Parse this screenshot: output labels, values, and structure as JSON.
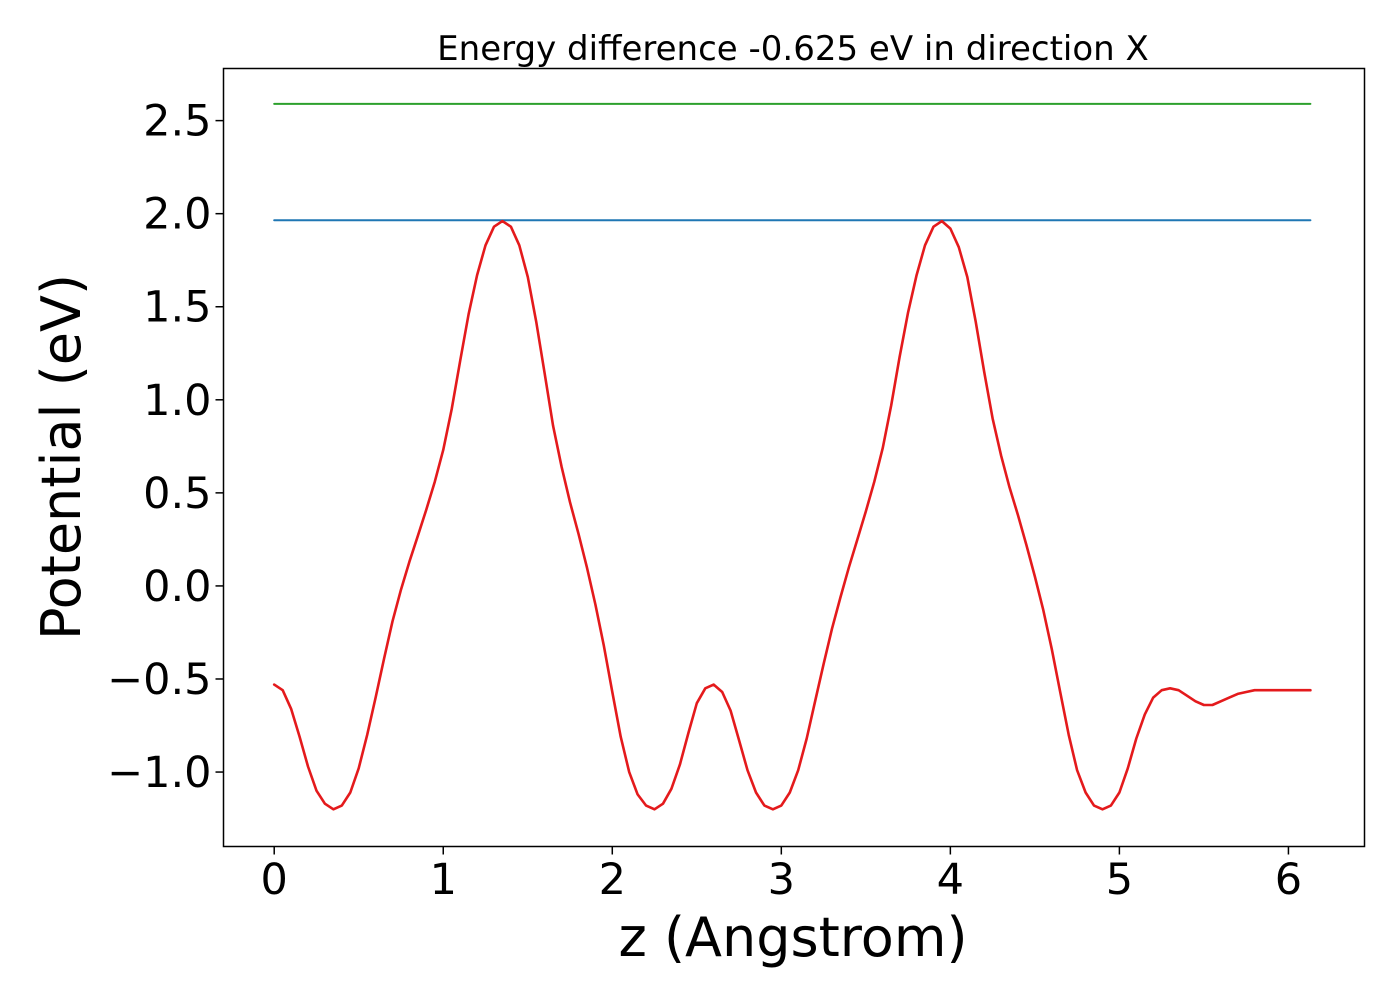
{
  "chart_data": {
    "type": "line",
    "title": "Energy difference -0.625 eV in direction X",
    "xlabel": "z (Angstrom)",
    "ylabel": "Potential (eV)",
    "xlim": [
      -0.3,
      6.45
    ],
    "ylim": [
      -1.4,
      2.78
    ],
    "x_ticks": [
      0,
      1,
      2,
      3,
      4,
      5,
      6
    ],
    "x_tick_labels": [
      "0",
      "1",
      "2",
      "3",
      "4",
      "5",
      "6"
    ],
    "y_ticks": [
      -1.0,
      -0.5,
      0.0,
      0.5,
      1.0,
      1.5,
      2.0,
      2.5
    ],
    "y_tick_labels": [
      "−1.0",
      "−0.5",
      "0.0",
      "0.5",
      "1.0",
      "1.5",
      "2.0",
      "2.5"
    ],
    "grid": false,
    "legend": "none",
    "series": [
      {
        "color": "#2ca02c",
        "x": [
          0.0,
          6.13
        ],
        "y": [
          2.59,
          2.59
        ]
      },
      {
        "color": "#1f77b4",
        "x": [
          0.0,
          6.13
        ],
        "y": [
          1.965,
          1.965
        ]
      },
      {
        "color": "#e41a1c",
        "x": [
          0.0,
          0.05,
          0.1,
          0.15,
          0.2,
          0.25,
          0.3,
          0.35,
          0.4,
          0.45,
          0.5,
          0.55,
          0.6,
          0.65,
          0.7,
          0.75,
          0.8,
          0.85,
          0.9,
          0.95,
          1.0,
          1.05,
          1.1,
          1.15,
          1.2,
          1.25,
          1.3,
          1.35,
          1.4,
          1.45,
          1.5,
          1.55,
          1.6,
          1.65,
          1.7,
          1.75,
          1.8,
          1.85,
          1.9,
          1.95,
          2.0,
          2.05,
          2.1,
          2.15,
          2.2,
          2.25,
          2.3,
          2.35,
          2.4,
          2.45,
          2.5,
          2.55,
          2.6,
          2.65,
          2.7,
          2.75,
          2.8,
          2.85,
          2.9,
          2.95,
          3.0,
          3.05,
          3.1,
          3.15,
          3.2,
          3.25,
          3.3,
          3.35,
          3.4,
          3.45,
          3.5,
          3.55,
          3.6,
          3.65,
          3.7,
          3.75,
          3.8,
          3.85,
          3.9,
          3.95,
          4.0,
          4.05,
          4.1,
          4.15,
          4.2,
          4.25,
          4.3,
          4.35,
          4.4,
          4.45,
          4.5,
          4.55,
          4.6,
          4.65,
          4.7,
          4.75,
          4.8,
          4.85,
          4.9,
          4.95,
          5.0,
          5.05,
          5.1,
          5.15,
          5.2,
          5.25,
          5.3,
          5.35,
          5.4,
          5.45,
          5.5,
          5.55,
          5.6,
          5.65,
          5.7,
          5.75,
          5.8,
          5.85,
          5.9,
          5.95,
          6.0,
          6.05,
          6.1,
          6.13
        ],
        "y": [
          -0.53,
          -0.56,
          -0.66,
          -0.81,
          -0.97,
          -1.1,
          -1.17,
          -1.2,
          -1.18,
          -1.11,
          -0.98,
          -0.8,
          -0.6,
          -0.39,
          -0.19,
          -0.02,
          0.13,
          0.27,
          0.41,
          0.56,
          0.73,
          0.95,
          1.21,
          1.46,
          1.67,
          1.83,
          1.93,
          1.96,
          1.93,
          1.83,
          1.66,
          1.42,
          1.14,
          0.86,
          0.64,
          0.45,
          0.28,
          0.1,
          -0.1,
          -0.32,
          -0.57,
          -0.81,
          -1.0,
          -1.12,
          -1.18,
          -1.2,
          -1.17,
          -1.09,
          -0.96,
          -0.79,
          -0.63,
          -0.55,
          -0.53,
          -0.57,
          -0.67,
          -0.83,
          -0.99,
          -1.11,
          -1.18,
          -1.2,
          -1.18,
          -1.11,
          -0.99,
          -0.82,
          -0.62,
          -0.42,
          -0.23,
          -0.06,
          0.1,
          0.25,
          0.4,
          0.56,
          0.74,
          0.97,
          1.23,
          1.47,
          1.67,
          1.83,
          1.93,
          1.96,
          1.92,
          1.82,
          1.66,
          1.42,
          1.15,
          0.9,
          0.7,
          0.53,
          0.38,
          0.22,
          0.05,
          -0.13,
          -0.34,
          -0.57,
          -0.8,
          -0.99,
          -1.11,
          -1.18,
          -1.2,
          -1.18,
          -1.11,
          -0.98,
          -0.82,
          -0.69,
          -0.6,
          -0.56,
          -0.55,
          -0.56,
          -0.59,
          -0.62,
          -0.64,
          -0.64,
          -0.62,
          -0.6,
          -0.58,
          -0.57,
          -0.56,
          -0.56,
          -0.56,
          -0.56,
          -0.56,
          -0.56,
          -0.56,
          -0.56
        ]
      }
    ]
  }
}
